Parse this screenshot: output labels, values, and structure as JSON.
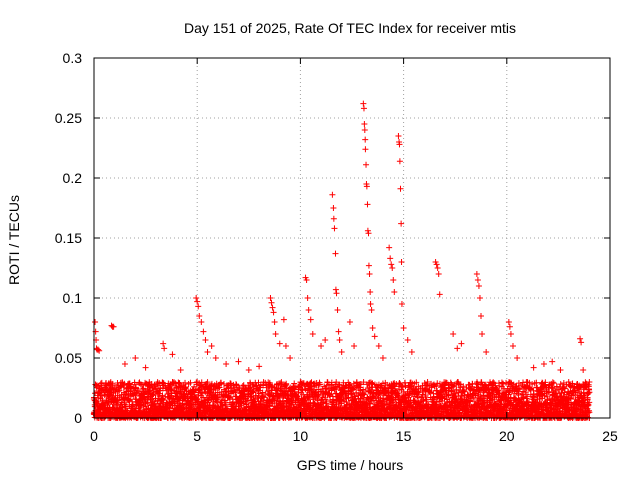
{
  "chart_data": {
    "type": "scatter",
    "title": "Day 151 of 2025, Rate Of TEC Index for receiver mtis",
    "xlabel": "GPS time / hours",
    "ylabel": "ROTI / TECUs",
    "xlim": [
      0,
      25
    ],
    "ylim": [
      0,
      0.3
    ],
    "x_ticks": [
      0,
      5,
      10,
      15,
      20,
      25
    ],
    "x_tick_labels": [
      "0",
      "5",
      "10",
      "15",
      "20",
      "25"
    ],
    "y_ticks": [
      0,
      0.05,
      0.1,
      0.15,
      0.2,
      0.25,
      0.3
    ],
    "y_tick_labels": [
      "0",
      "0.05",
      "0.1",
      "0.15",
      "0.2",
      "0.25",
      "0.3"
    ],
    "grid": true,
    "marker": "+",
    "marker_color": "#ff0000",
    "series": [
      {
        "name": "ROTI",
        "baseline_range": [
          0,
          0.03
        ],
        "points": [
          [
            0.05,
            0.08
          ],
          [
            0.08,
            0.072
          ],
          [
            0.1,
            0.065
          ],
          [
            0.12,
            0.058
          ],
          [
            0.15,
            0.057
          ],
          [
            0.2,
            0.057
          ],
          [
            0.25,
            0.056
          ],
          [
            0.85,
            0.077
          ],
          [
            0.9,
            0.076
          ],
          [
            0.95,
            0.076
          ],
          [
            1.5,
            0.045
          ],
          [
            2.0,
            0.05
          ],
          [
            2.5,
            0.042
          ],
          [
            3.35,
            0.062
          ],
          [
            3.4,
            0.058
          ],
          [
            3.8,
            0.053
          ],
          [
            4.2,
            0.04
          ],
          [
            4.95,
            0.1
          ],
          [
            5.0,
            0.097
          ],
          [
            5.05,
            0.093
          ],
          [
            5.1,
            0.085
          ],
          [
            5.2,
            0.08
          ],
          [
            5.3,
            0.072
          ],
          [
            5.4,
            0.065
          ],
          [
            5.5,
            0.055
          ],
          [
            5.7,
            0.06
          ],
          [
            5.9,
            0.05
          ],
          [
            6.4,
            0.045
          ],
          [
            7.0,
            0.047
          ],
          [
            7.5,
            0.04
          ],
          [
            8.0,
            0.043
          ],
          [
            8.55,
            0.1
          ],
          [
            8.6,
            0.096
          ],
          [
            8.65,
            0.092
          ],
          [
            8.7,
            0.088
          ],
          [
            8.75,
            0.08
          ],
          [
            8.8,
            0.07
          ],
          [
            9.0,
            0.062
          ],
          [
            9.2,
            0.082
          ],
          [
            9.3,
            0.06
          ],
          [
            9.5,
            0.05
          ],
          [
            10.25,
            0.117
          ],
          [
            10.3,
            0.115
          ],
          [
            10.35,
            0.1
          ],
          [
            10.4,
            0.09
          ],
          [
            10.5,
            0.082
          ],
          [
            10.6,
            0.07
          ],
          [
            11.0,
            0.06
          ],
          [
            11.2,
            0.065
          ],
          [
            11.55,
            0.186
          ],
          [
            11.6,
            0.175
          ],
          [
            11.62,
            0.166
          ],
          [
            11.65,
            0.158
          ],
          [
            11.7,
            0.137
          ],
          [
            11.72,
            0.107
          ],
          [
            11.75,
            0.104
          ],
          [
            11.8,
            0.09
          ],
          [
            11.85,
            0.072
          ],
          [
            11.9,
            0.065
          ],
          [
            12.0,
            0.055
          ],
          [
            12.4,
            0.08
          ],
          [
            12.6,
            0.06
          ],
          [
            13.05,
            0.262
          ],
          [
            13.08,
            0.258
          ],
          [
            13.1,
            0.245
          ],
          [
            13.12,
            0.24
          ],
          [
            13.14,
            0.232
          ],
          [
            13.15,
            0.224
          ],
          [
            13.18,
            0.211
          ],
          [
            13.2,
            0.195
          ],
          [
            13.22,
            0.193
          ],
          [
            13.25,
            0.178
          ],
          [
            13.27,
            0.156
          ],
          [
            13.3,
            0.154
          ],
          [
            13.32,
            0.127
          ],
          [
            13.35,
            0.12
          ],
          [
            13.38,
            0.105
          ],
          [
            13.4,
            0.095
          ],
          [
            13.45,
            0.09
          ],
          [
            13.5,
            0.075
          ],
          [
            13.6,
            0.068
          ],
          [
            13.8,
            0.06
          ],
          [
            14.0,
            0.05
          ],
          [
            14.3,
            0.142
          ],
          [
            14.35,
            0.133
          ],
          [
            14.4,
            0.128
          ],
          [
            14.45,
            0.125
          ],
          [
            14.5,
            0.115
          ],
          [
            14.55,
            0.105
          ],
          [
            14.75,
            0.235
          ],
          [
            14.78,
            0.23
          ],
          [
            14.8,
            0.228
          ],
          [
            14.82,
            0.214
          ],
          [
            14.85,
            0.191
          ],
          [
            14.88,
            0.162
          ],
          [
            14.9,
            0.13
          ],
          [
            14.92,
            0.095
          ],
          [
            15.0,
            0.075
          ],
          [
            15.2,
            0.065
          ],
          [
            15.4,
            0.055
          ],
          [
            16.55,
            0.13
          ],
          [
            16.6,
            0.128
          ],
          [
            16.65,
            0.125
          ],
          [
            16.7,
            0.12
          ],
          [
            16.75,
            0.103
          ],
          [
            17.4,
            0.07
          ],
          [
            17.6,
            0.058
          ],
          [
            17.8,
            0.062
          ],
          [
            18.55,
            0.12
          ],
          [
            18.6,
            0.115
          ],
          [
            18.65,
            0.11
          ],
          [
            18.7,
            0.1
          ],
          [
            18.75,
            0.085
          ],
          [
            18.8,
            0.07
          ],
          [
            19.0,
            0.055
          ],
          [
            20.1,
            0.08
          ],
          [
            20.15,
            0.076
          ],
          [
            20.2,
            0.07
          ],
          [
            20.3,
            0.06
          ],
          [
            20.5,
            0.05
          ],
          [
            21.3,
            0.042
          ],
          [
            21.8,
            0.045
          ],
          [
            22.2,
            0.047
          ],
          [
            22.6,
            0.04
          ],
          [
            23.0,
            0.03
          ],
          [
            23.55,
            0.066
          ],
          [
            23.6,
            0.063
          ],
          [
            23.7,
            0.04
          ],
          [
            24.0,
            0.03
          ]
        ]
      }
    ]
  }
}
